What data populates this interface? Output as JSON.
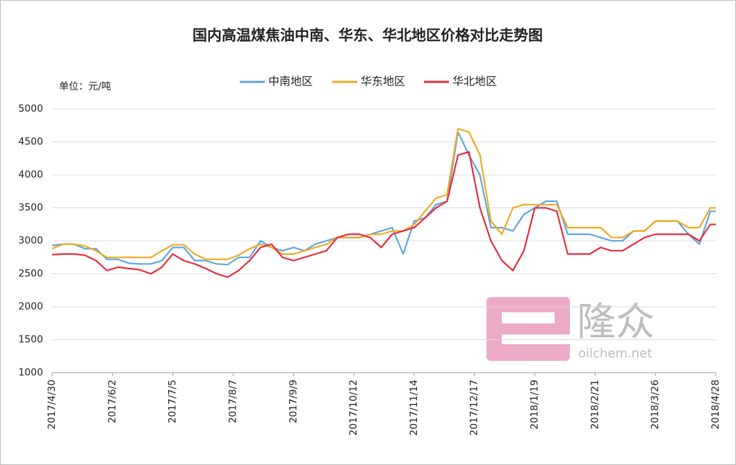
{
  "chart_data": {
    "type": "line",
    "title": "国内高温煤焦油中南、华东、华北地区价格对比走势图",
    "unit_label": "单位：元/吨",
    "watermark": "隆众",
    "watermark_url": "oilchem.net",
    "legend": "top",
    "grid": true,
    "x": [
      "2017/4/30",
      "2017/5/6",
      "2017/5/12",
      "2017/5/18",
      "2017/5/24",
      "2017/5/30",
      "2017/6/5",
      "2017/6/11",
      "2017/6/17",
      "2017/6/23",
      "2017/6/29",
      "2017/7/5",
      "2017/7/11",
      "2017/7/17",
      "2017/7/23",
      "2017/7/29",
      "2017/8/4",
      "2017/8/10",
      "2017/8/16",
      "2017/8/22",
      "2017/8/28",
      "2017/9/3",
      "2017/9/9",
      "2017/9/15",
      "2017/9/21",
      "2017/9/27",
      "2017/10/3",
      "2017/10/9",
      "2017/10/15",
      "2017/10/21",
      "2017/10/27",
      "2017/11/2",
      "2017/11/8",
      "2017/11/14",
      "2017/11/20",
      "2017/11/26",
      "2017/12/2",
      "2017/12/8",
      "2017/12/14",
      "2017/12/20",
      "2017/12/26",
      "2018/1/1",
      "2018/1/7",
      "2018/1/13",
      "2018/1/19",
      "2018/1/25",
      "2018/1/31",
      "2018/2/6",
      "2018/2/12",
      "2018/2/18",
      "2018/2/24",
      "2018/3/2",
      "2018/3/8",
      "2018/3/14",
      "2018/3/20",
      "2018/3/26",
      "2018/4/1",
      "2018/4/7",
      "2018/4/13",
      "2018/4/19",
      "2018/4/25",
      "2018/4/28"
    ],
    "xlim": [
      "2017/4/30",
      "2018/4/28"
    ],
    "xticks": [
      "2017/4/30",
      "2017/6/2",
      "2017/7/5",
      "2017/8/7",
      "2017/9/9",
      "2017/10/12",
      "2017/11/14",
      "2017/12/17",
      "2018/1/19",
      "2018/2/21",
      "2018/3/26",
      "2018/4/28"
    ],
    "ylim": [
      1000,
      5000
    ],
    "yticks": [
      1000,
      1500,
      2000,
      2500,
      3000,
      3500,
      4000,
      4500,
      5000
    ],
    "series": [
      {
        "name": "中南地区",
        "color": "#5aa5e2",
        "values": [
          2930,
          2950,
          2950,
          2880,
          2880,
          2720,
          2720,
          2660,
          2650,
          2650,
          2700,
          2900,
          2900,
          2700,
          2700,
          2650,
          2640,
          2750,
          2750,
          3000,
          2900,
          2850,
          2900,
          2850,
          2950,
          3000,
          3050,
          3050,
          3050,
          3100,
          3150,
          3200,
          2800,
          3300,
          3350,
          3550,
          3600,
          4650,
          4300,
          4000,
          3200,
          3200,
          3150,
          3400,
          3500,
          3600,
          3600,
          3100,
          3100,
          3100,
          3050,
          3000,
          3000,
          3150,
          3150,
          3300,
          3300,
          3300,
          3100,
          2950,
          3450,
          3450
        ]
      },
      {
        "name": "华东地区",
        "color": "#f0a81c",
        "values": [
          2880,
          2950,
          2950,
          2920,
          2850,
          2750,
          2750,
          2750,
          2750,
          2750,
          2850,
          2940,
          2940,
          2800,
          2720,
          2720,
          2720,
          2780,
          2880,
          2950,
          2900,
          2800,
          2800,
          2850,
          2900,
          2950,
          3050,
          3050,
          3050,
          3100,
          3100,
          3150,
          3150,
          3250,
          3450,
          3650,
          3700,
          4700,
          4650,
          4300,
          3300,
          3100,
          3500,
          3550,
          3550,
          3550,
          3550,
          3200,
          3200,
          3200,
          3200,
          3050,
          3050,
          3150,
          3150,
          3300,
          3300,
          3300,
          3200,
          3200,
          3500,
          3500
        ]
      },
      {
        "name": "华北地区",
        "color": "#e8293a",
        "values": [
          2790,
          2800,
          2800,
          2780,
          2700,
          2550,
          2600,
          2580,
          2560,
          2500,
          2600,
          2800,
          2700,
          2650,
          2580,
          2500,
          2450,
          2550,
          2700,
          2900,
          2950,
          2750,
          2700,
          2750,
          2800,
          2850,
          3050,
          3100,
          3100,
          3050,
          2900,
          3100,
          3150,
          3200,
          3350,
          3500,
          3600,
          4300,
          4350,
          3500,
          3000,
          2700,
          2550,
          2850,
          3500,
          3500,
          3450,
          2800,
          2800,
          2800,
          2900,
          2850,
          2850,
          2950,
          3050,
          3100,
          3100,
          3100,
          3100,
          3000,
          3250,
          3250
        ]
      }
    ]
  }
}
